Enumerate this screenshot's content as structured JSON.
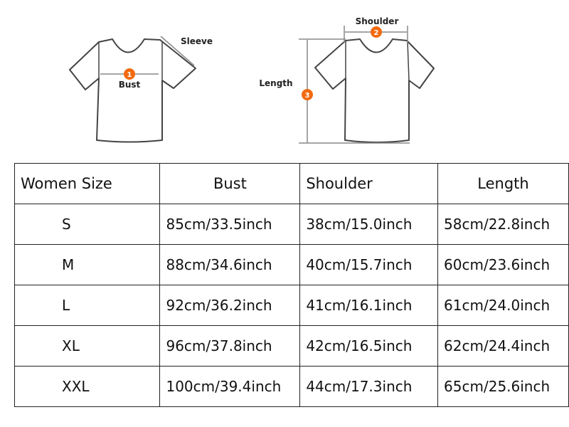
{
  "diagram": {
    "labels": {
      "sleeve": "Sleeve",
      "bust": "Bust",
      "shoulder": "Shoulder",
      "length": "Length"
    },
    "markers": [
      "1",
      "2",
      "3"
    ],
    "marker_color": "#f26a0f"
  },
  "table": {
    "headers": [
      "Women Size",
      "Bust",
      "Shoulder",
      "Length"
    ],
    "rows": [
      [
        "S",
        "85cm/33.5inch",
        "38cm/15.0inch",
        "58cm/22.8inch"
      ],
      [
        "M",
        "88cm/34.6inch",
        "40cm/15.7inch",
        "60cm/23.6inch"
      ],
      [
        "L",
        "92cm/36.2inch",
        "41cm/16.1inch",
        "61cm/24.0inch"
      ],
      [
        "XL",
        "96cm/37.8inch",
        "42cm/16.5inch",
        "62cm/24.4inch"
      ],
      [
        "XXL",
        "100cm/39.4inch",
        "44cm/17.3inch",
        "65cm/25.6inch"
      ]
    ]
  }
}
